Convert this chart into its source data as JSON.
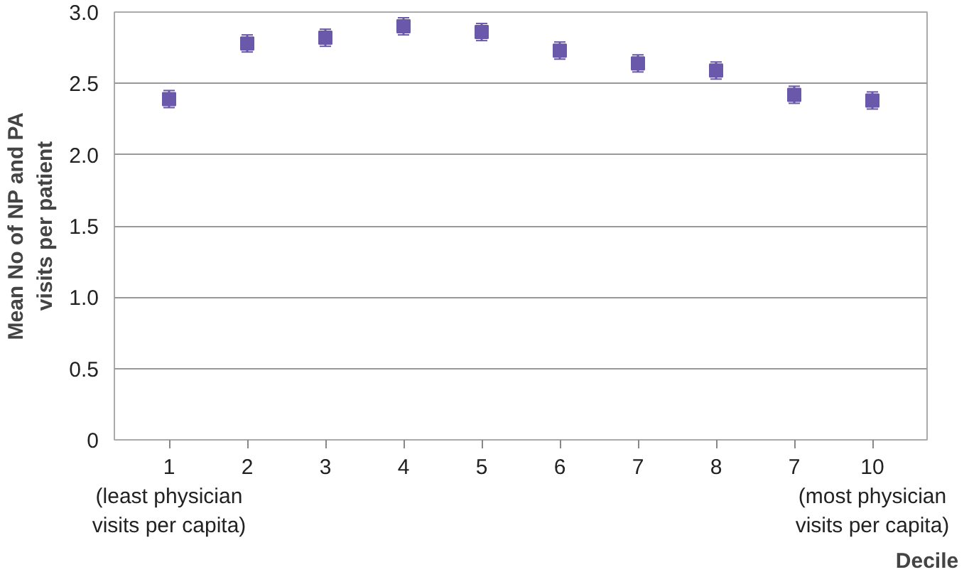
{
  "chart_data": {
    "type": "scatter",
    "categories": [
      "1\n(least physician\nvisits per capita)",
      "2",
      "3",
      "4",
      "5",
      "6",
      "7",
      "8",
      "7",
      "10\n(most physician\nvisits per capita)"
    ],
    "series": [
      {
        "color": "#6a58aa",
        "values": [
          2.39,
          2.78,
          2.82,
          2.9,
          2.86,
          2.73,
          2.64,
          2.59,
          2.42,
          2.38
        ],
        "errors": [
          0.06,
          0.06,
          0.06,
          0.06,
          0.06,
          0.06,
          0.06,
          0.06,
          0.06,
          0.06
        ]
      }
    ],
    "xlabel": "Decile",
    "ylabel": "Mean No of NP and PA\nvisits per patient",
    "ylim": [
      0,
      3.0
    ],
    "yticks": [
      {
        "value": 0,
        "label": "0"
      },
      0.5,
      {
        "value": 1,
        "label": "1.0"
      },
      1.5,
      {
        "value": 2,
        "label": "2.0"
      },
      2.5,
      {
        "value": 3,
        "label": "3.0"
      }
    ],
    "grid": "y",
    "marker": "square"
  }
}
